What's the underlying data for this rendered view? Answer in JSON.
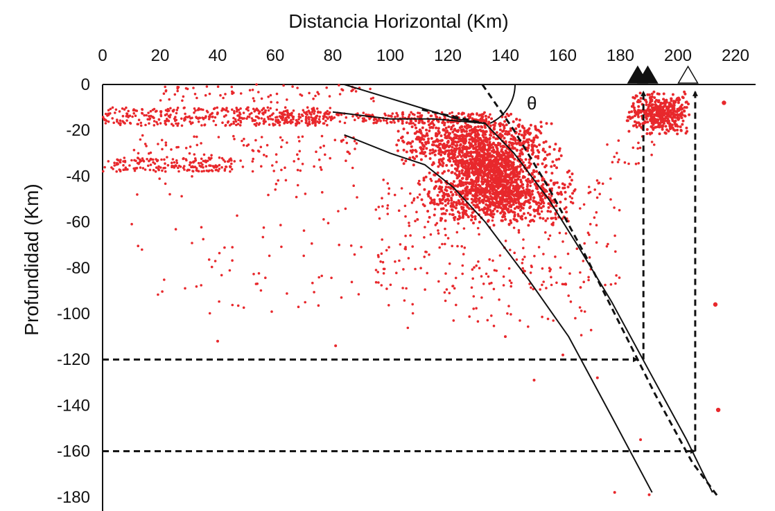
{
  "chart_data": {
    "type": "scatter",
    "title": "",
    "xlabel": "Distancia Horizontal (Km)",
    "ylabel": "Profundidad (Km)",
    "xlim": [
      0,
      220
    ],
    "ylim": [
      -180,
      0
    ],
    "x_ticks": [
      "0",
      "20",
      "40",
      "60",
      "80",
      "100",
      "120",
      "140",
      "160",
      "180",
      "200",
      "220"
    ],
    "y_ticks": [
      "0",
      "-20",
      "-40",
      "-60",
      "-80",
      "-100",
      "-120",
      "-140",
      "-160",
      "-180"
    ],
    "x_axis_position": "top",
    "grid": false,
    "legend": "none",
    "colors": {
      "points": "#e8282c",
      "lines": "#111111"
    },
    "annotations": {
      "angle_label": "θ"
    },
    "series": [
      {
        "kind": "points",
        "clusters": [
          {
            "x": [
              0,
              80
            ],
            "y": [
              -18,
              -10
            ],
            "n": 380,
            "size": 1.8
          },
          {
            "x": [
              60,
              135
            ],
            "y": [
              -17,
              -12
            ],
            "n": 260,
            "size": 1.8
          },
          {
            "x": [
              0,
              45
            ],
            "y": [
              -38,
              -32
            ],
            "n": 160,
            "size": 1.8
          },
          {
            "x": [
              10,
              90
            ],
            "y": [
              -38,
              -22
            ],
            "n": 120,
            "size": 1.8
          },
          {
            "x": [
              20,
              95
            ],
            "y": [
              -8,
              0
            ],
            "n": 70,
            "size": 1.8
          },
          {
            "x": [
              100,
              160
            ],
            "y": [
              -40,
              -12
            ],
            "n": 900,
            "size": 2.0,
            "dense": true
          },
          {
            "x": [
              110,
              165
            ],
            "y": [
              -62,
              -35
            ],
            "n": 900,
            "size": 2.0,
            "dense": true
          },
          {
            "x": [
              120,
              150
            ],
            "y": [
              -50,
              -25
            ],
            "n": 500,
            "size": 2.0,
            "dense": true
          },
          {
            "x": [
              95,
              180
            ],
            "y": [
              -90,
              -40
            ],
            "n": 300,
            "size": 1.8
          },
          {
            "x": [
              10,
              110
            ],
            "y": [
              -100,
              -40
            ],
            "n": 90,
            "size": 1.8
          },
          {
            "x": [
              100,
              170
            ],
            "y": [
              -110,
              -85
            ],
            "n": 40,
            "size": 1.8
          },
          {
            "x": [
              182,
              205
            ],
            "y": [
              -22,
              -3
            ],
            "n": 420,
            "size": 2.0,
            "dense": true
          },
          {
            "x": [
              175,
              195
            ],
            "y": [
              -35,
              -20
            ],
            "n": 20,
            "size": 1.8
          }
        ],
        "points": [
          {
            "x": 216,
            "y": -8,
            "size": 3.2
          },
          {
            "x": 213,
            "y": -96,
            "size": 3.2
          },
          {
            "x": 214,
            "y": -142,
            "size": 3.2
          },
          {
            "x": 190,
            "y": -179,
            "size": 2.0
          },
          {
            "x": 178,
            "y": -178,
            "size": 2.0
          },
          {
            "x": 187,
            "y": -155,
            "size": 2.0
          },
          {
            "x": 172,
            "y": -128,
            "size": 2.0
          },
          {
            "x": 160,
            "y": -118,
            "size": 2.0
          },
          {
            "x": 150,
            "y": -129,
            "size": 2.0
          },
          {
            "x": 140,
            "y": -110,
            "size": 2.0
          },
          {
            "x": 40,
            "y": -112,
            "size": 2.0
          },
          {
            "x": 81,
            "y": -114,
            "size": 2.0
          }
        ]
      },
      {
        "kind": "line",
        "style": "solid",
        "points": [
          [
            84,
            0
          ],
          [
            105,
            -8
          ],
          [
            123,
            -15
          ],
          [
            133,
            -17
          ],
          [
            143,
            -30
          ],
          [
            155,
            -50
          ],
          [
            165,
            -70
          ],
          [
            177,
            -95
          ],
          [
            190,
            -125
          ],
          [
            203,
            -155
          ],
          [
            212,
            -178
          ]
        ]
      },
      {
        "kind": "line",
        "style": "solid",
        "points": [
          [
            80,
            -12
          ],
          [
            100,
            -15
          ],
          [
            115,
            -15
          ],
          [
            133,
            -17
          ]
        ]
      },
      {
        "kind": "line",
        "style": "solid",
        "points": [
          [
            84,
            -22
          ],
          [
            100,
            -30
          ],
          [
            112,
            -35
          ],
          [
            122,
            -45
          ],
          [
            133,
            -60
          ],
          [
            148,
            -85
          ],
          [
            162,
            -110
          ],
          [
            177,
            -145
          ],
          [
            191,
            -178
          ]
        ]
      },
      {
        "kind": "line",
        "style": "dashed",
        "points": [
          [
            132,
            0
          ],
          [
            143,
            -20
          ],
          [
            155,
            -45
          ],
          [
            168,
            -75
          ],
          [
            180,
            -105
          ],
          [
            192,
            -135
          ],
          [
            205,
            -165
          ],
          [
            214,
            -180
          ]
        ]
      },
      {
        "kind": "line",
        "style": "dashed",
        "points": [
          [
            111,
            -11
          ],
          [
            133,
            -17
          ]
        ]
      },
      {
        "kind": "arrow",
        "style": "dashed",
        "from": [
          0,
          -120
        ],
        "to": [
          186,
          -120
        ]
      },
      {
        "kind": "arrow",
        "style": "dashed",
        "from": [
          0,
          -160
        ],
        "to": [
          206,
          -160
        ]
      },
      {
        "kind": "arrow",
        "style": "dashed",
        "from": [
          188,
          -120
        ],
        "to": [
          188,
          -3
        ]
      },
      {
        "kind": "arrow",
        "style": "dashed",
        "from": [
          206,
          -160
        ],
        "to": [
          206,
          -3
        ]
      }
    ],
    "markers": [
      {
        "x": 186,
        "y": 3,
        "shape": "triangle",
        "fill": "black"
      },
      {
        "x": 189.5,
        "y": 3,
        "shape": "triangle",
        "fill": "black"
      },
      {
        "x": 203.5,
        "y": 3,
        "shape": "triangle",
        "fill": "white"
      }
    ]
  }
}
